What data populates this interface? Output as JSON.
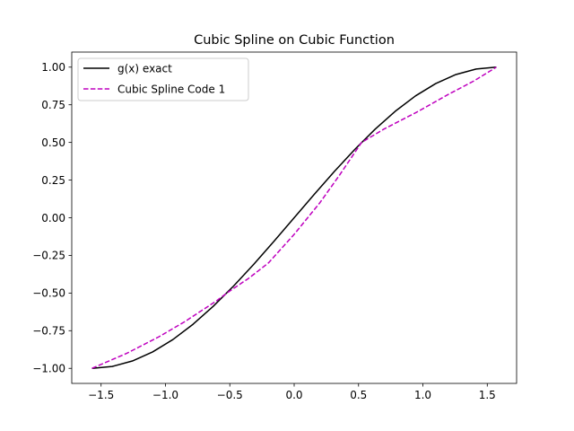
{
  "chart_data": {
    "type": "line",
    "title": "Cubic Spline on Cubic Function",
    "xlabel": "",
    "ylabel": "",
    "xlim": [
      -1.7279,
      1.7279
    ],
    "ylim": [
      -1.1,
      1.1
    ],
    "xticks": [
      -1.5,
      -1.0,
      -0.5,
      0.0,
      0.5,
      1.0,
      1.5
    ],
    "xtick_labels": [
      "−1.5",
      "−1.0",
      "−0.5",
      "0.0",
      "0.5",
      "1.0",
      "1.5"
    ],
    "yticks": [
      -1.0,
      -0.75,
      -0.5,
      -0.25,
      0.0,
      0.25,
      0.5,
      0.75,
      1.0
    ],
    "ytick_labels": [
      "−1.00",
      "−0.75",
      "−0.50",
      "−0.25",
      "0.00",
      "0.25",
      "0.50",
      "0.75",
      "1.00"
    ],
    "grid": false,
    "legend": "upper-left",
    "series": [
      {
        "name": "g(x) exact",
        "color": "#000000",
        "style": "solid",
        "x": [
          -1.5708,
          -1.4137,
          -1.2566,
          -1.0996,
          -0.9425,
          -0.7854,
          -0.6283,
          -0.4712,
          -0.3142,
          -0.1571,
          0.0,
          0.1571,
          0.3142,
          0.4712,
          0.6283,
          0.7854,
          0.9425,
          1.0996,
          1.2566,
          1.4137,
          1.5708
        ],
        "y": [
          -1.0,
          -0.9877,
          -0.9511,
          -0.891,
          -0.809,
          -0.7071,
          -0.5878,
          -0.454,
          -0.309,
          -0.1564,
          0.0,
          0.1564,
          0.309,
          0.454,
          0.5878,
          0.7071,
          0.809,
          0.891,
          0.9511,
          0.9877,
          1.0
        ]
      },
      {
        "name": "Cubic Spline Code 1",
        "color": "#bf00bf",
        "style": "dashed",
        "x": [
          -1.5708,
          -1.3,
          -1.05,
          -0.85,
          -0.6,
          -0.5236,
          -0.35,
          -0.2,
          0.0,
          0.2,
          0.35,
          0.5236,
          0.7,
          0.95,
          1.2,
          1.4,
          1.5708
        ],
        "y": [
          -1.0,
          -0.9,
          -0.79,
          -0.69,
          -0.55,
          -0.5,
          -0.4,
          -0.3,
          -0.11,
          0.1,
          0.28,
          0.5,
          0.59,
          0.7,
          0.82,
          0.91,
          1.0
        ]
      }
    ]
  }
}
